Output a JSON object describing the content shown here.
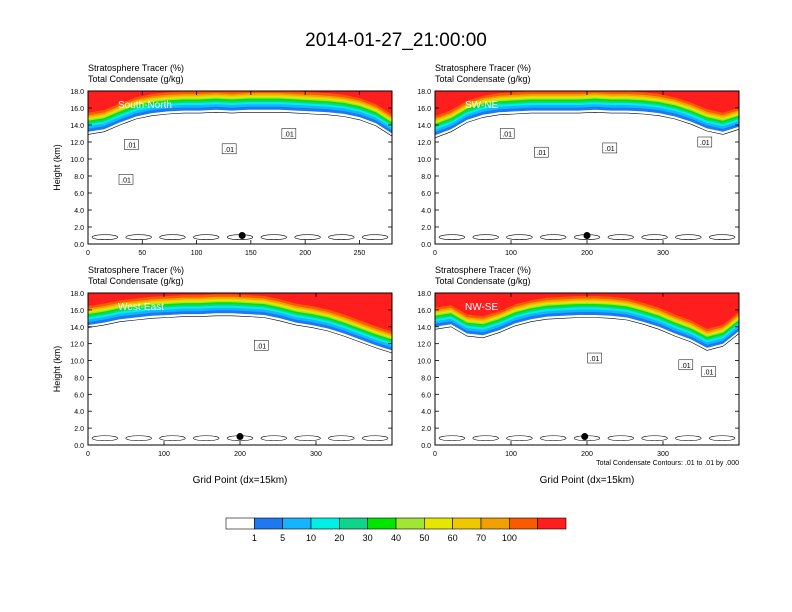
{
  "title": "2014-01-27_21:00:00",
  "footnote": "Total Condensate Contours: .01 to .01 by .000",
  "colorbar": {
    "colors": [
      "#ffffff",
      "#1e78f0",
      "#15b4ff",
      "#00f0e6",
      "#10d48c",
      "#00e600",
      "#a0e632",
      "#e6e600",
      "#f0c800",
      "#f0a000",
      "#fa5a00",
      "#ff1e1e"
    ],
    "labels": [
      "1",
      "5",
      "10",
      "20",
      "30",
      "40",
      "50",
      "60",
      "70",
      "100"
    ]
  },
  "chart_data": [
    {
      "type": "heatmap",
      "label": "South-North",
      "field_labels": [
        "Stratosphere Tracer   (%)",
        "Total Condensate   (g/kg)"
      ],
      "ylabel": "Height (km)",
      "xlabel": "",
      "xlim": [
        0,
        280
      ],
      "ylim": [
        0,
        18
      ],
      "xticks": [
        "0",
        "50",
        "100",
        "150",
        "200",
        "250"
      ],
      "xtick_values": [
        0,
        50,
        100,
        150,
        200,
        250
      ],
      "yticks": [
        "0.0",
        "2.0",
        "4.0",
        "6.0",
        "8.0",
        "10.0",
        "12.0",
        "14.0",
        "16.0",
        "18.0"
      ],
      "tracer_base_km": [
        13.2,
        13.5,
        14.3,
        15.0,
        15.4,
        15.6,
        15.7,
        15.7,
        15.8,
        15.7,
        15.8,
        15.8,
        15.8,
        15.7,
        15.6,
        15.5,
        15.3,
        14.9,
        14.2,
        13.0
      ],
      "contour_labels": [
        {
          "x": 40,
          "y": 11.7,
          "text": ".01"
        },
        {
          "x": 35,
          "y": 7.6,
          "text": ".01"
        },
        {
          "x": 185,
          "y": 13.0,
          "text": ".01"
        },
        {
          "x": 130,
          "y": 11.2,
          "text": ".01"
        }
      ],
      "dot": {
        "x": 142,
        "y": 1.0
      }
    },
    {
      "type": "heatmap",
      "label": "SW-NE",
      "field_labels": [
        "Stratosphere Tracer   (%)",
        "Total Condensate   (g/kg)"
      ],
      "ylabel": "",
      "xlabel": "",
      "xlim": [
        0,
        400
      ],
      "ylim": [
        0,
        18
      ],
      "xticks": [
        "0",
        "100",
        "200",
        "300"
      ],
      "xtick_values": [
        0,
        100,
        200,
        300
      ],
      "yticks": [
        "0.0",
        "2.0",
        "4.0",
        "6.0",
        "8.0",
        "10.0",
        "12.0",
        "14.0",
        "16.0",
        "18.0"
      ],
      "tracer_base_km": [
        12.8,
        13.5,
        14.6,
        15.2,
        15.5,
        15.6,
        15.7,
        15.7,
        15.7,
        15.7,
        15.8,
        15.7,
        15.7,
        15.6,
        15.4,
        15.0,
        14.4,
        13.6,
        13.2,
        13.8
      ],
      "contour_labels": [
        {
          "x": 95,
          "y": 13.0,
          "text": ".01"
        },
        {
          "x": 140,
          "y": 10.8,
          "text": ".01"
        },
        {
          "x": 230,
          "y": 11.3,
          "text": ".01"
        },
        {
          "x": 355,
          "y": 12.0,
          "text": ".01"
        }
      ],
      "dot": {
        "x": 200,
        "y": 1.0
      }
    },
    {
      "type": "heatmap",
      "label": "West-East",
      "field_labels": [
        "Stratosphere Tracer   (%)",
        "Total Condensate   (g/kg)"
      ],
      "ylabel": "Height (km)",
      "xlabel": "Grid Point (dx=15km)",
      "xlim": [
        0,
        400
      ],
      "ylim": [
        0,
        18
      ],
      "xticks": [
        "0",
        "100",
        "200",
        "300"
      ],
      "xtick_values": [
        0,
        100,
        200,
        300
      ],
      "yticks": [
        "0.0",
        "2.0",
        "4.0",
        "6.0",
        "8.0",
        "10.0",
        "12.0",
        "14.0",
        "16.0",
        "18.0"
      ],
      "tracer_base_km": [
        14.2,
        14.5,
        14.9,
        15.1,
        15.3,
        15.4,
        15.5,
        15.5,
        15.6,
        15.6,
        15.5,
        15.4,
        15.0,
        14.5,
        14.2,
        13.8,
        13.2,
        12.5,
        11.8,
        11.2
      ],
      "contour_labels": [
        {
          "x": 228,
          "y": 11.8,
          "text": ".01"
        }
      ],
      "dot": {
        "x": 200,
        "y": 1.0
      }
    },
    {
      "type": "heatmap",
      "label": "NW-SE",
      "field_labels": [
        "Stratosphere Tracer   (%)",
        "Total Condensate   (g/kg)"
      ],
      "ylabel": "",
      "xlabel": "Grid Point (dx=15km)",
      "xlim": [
        0,
        400
      ],
      "ylim": [
        0,
        18
      ],
      "xticks": [
        "0",
        "100",
        "200",
        "300"
      ],
      "xtick_values": [
        0,
        100,
        200,
        300
      ],
      "yticks": [
        "0.0",
        "2.0",
        "4.0",
        "6.0",
        "8.0",
        "10.0",
        "12.0",
        "14.0",
        "16.0",
        "18.0"
      ],
      "tracer_base_km": [
        14.0,
        14.3,
        13.2,
        13.0,
        13.6,
        14.4,
        14.9,
        15.2,
        15.3,
        15.4,
        15.4,
        15.3,
        15.1,
        14.6,
        14.0,
        13.2,
        12.5,
        11.5,
        12.0,
        13.5
      ],
      "contour_labels": [
        {
          "x": 210,
          "y": 10.3,
          "text": ".01"
        },
        {
          "x": 330,
          "y": 9.5,
          "text": ".01"
        },
        {
          "x": 360,
          "y": 8.7,
          "text": ".01"
        }
      ],
      "dot": {
        "x": 197,
        "y": 1.0
      }
    }
  ]
}
